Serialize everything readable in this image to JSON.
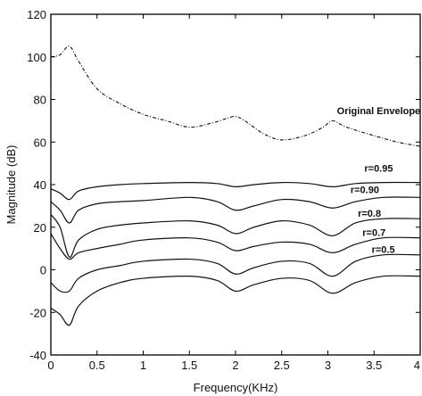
{
  "chart_data": {
    "type": "line",
    "title": "",
    "xlabel": "Frequency(KHz)",
    "ylabel": "Magnitude (dB)",
    "xlim": [
      0,
      4
    ],
    "ylim": [
      -40,
      120
    ],
    "xticks": [
      0,
      0.5,
      1,
      1.5,
      2,
      2.5,
      3,
      3.5,
      4
    ],
    "xtick_labels": [
      "0",
      "0.5",
      "1",
      "1.5",
      "2",
      "2.5",
      "3",
      "3.5",
      "4"
    ],
    "yticks": [
      -40,
      -20,
      0,
      20,
      40,
      60,
      80,
      100,
      120
    ],
    "ytick_labels": [
      "-40",
      "-20",
      "0",
      "20",
      "40",
      "60",
      "80",
      "100",
      "120"
    ],
    "grid": false,
    "legend": "none",
    "series": [
      {
        "name": "Original Envelope",
        "dashed": true,
        "x": [
          0,
          0.1,
          0.2,
          0.3,
          0.5,
          0.75,
          1.0,
          1.25,
          1.5,
          1.75,
          1.9,
          2.0,
          2.1,
          2.3,
          2.5,
          2.75,
          2.95,
          3.05,
          3.2,
          3.5,
          3.75,
          4.0
        ],
        "y": [
          100,
          101,
          105,
          98,
          85,
          78,
          73,
          70,
          67,
          69,
          71,
          72,
          70,
          64,
          61,
          63,
          67,
          70,
          67,
          63,
          60,
          58
        ]
      },
      {
        "name": "r=0.95",
        "x": [
          0,
          0.1,
          0.2,
          0.3,
          0.5,
          0.75,
          1.0,
          1.5,
          1.8,
          2.0,
          2.2,
          2.5,
          2.8,
          3.05,
          3.3,
          3.6,
          4.0
        ],
        "y": [
          38,
          36,
          33,
          37,
          39,
          40,
          40.5,
          41,
          40.5,
          39,
          40,
          41,
          40.5,
          39,
          40.5,
          41,
          41
        ]
      },
      {
        "name": "r=0.90",
        "x": [
          0,
          0.1,
          0.2,
          0.3,
          0.5,
          0.75,
          1.0,
          1.5,
          1.8,
          2.0,
          2.2,
          2.5,
          2.8,
          3.05,
          3.3,
          3.6,
          4.0
        ],
        "y": [
          32,
          28,
          22,
          28,
          31,
          32,
          32.5,
          34,
          32,
          28,
          30,
          33,
          32,
          29,
          32,
          34,
          34
        ]
      },
      {
        "name": "r=0.8",
        "x": [
          0,
          0.1,
          0.2,
          0.3,
          0.5,
          0.75,
          1.0,
          1.5,
          1.8,
          2.0,
          2.2,
          2.5,
          2.8,
          3.05,
          3.3,
          3.6,
          4.0
        ],
        "y": [
          26,
          20,
          6,
          14,
          19,
          21,
          22,
          23,
          21,
          17,
          20,
          23,
          21,
          16,
          22,
          24,
          24
        ]
      },
      {
        "name": "r=0.7",
        "x": [
          0,
          0.1,
          0.2,
          0.3,
          0.5,
          0.75,
          1.0,
          1.5,
          1.8,
          2.0,
          2.2,
          2.5,
          2.8,
          3.05,
          3.3,
          3.6,
          4.0
        ],
        "y": [
          17,
          10,
          5,
          8,
          10,
          12,
          14,
          15,
          13,
          9,
          11,
          13,
          12,
          8,
          12,
          15,
          15
        ]
      },
      {
        "name": "r=0.5",
        "x": [
          0,
          0.1,
          0.2,
          0.3,
          0.5,
          0.75,
          1.0,
          1.5,
          1.8,
          2.0,
          2.2,
          2.5,
          2.8,
          3.05,
          3.3,
          3.6,
          4.0
        ],
        "y": [
          -6,
          -10,
          -10,
          -4,
          0,
          2,
          4,
          5,
          3,
          -2,
          1,
          4,
          3,
          -3,
          4,
          7,
          7
        ]
      },
      {
        "name": "",
        "x": [
          0,
          0.1,
          0.2,
          0.3,
          0.5,
          0.75,
          1.0,
          1.5,
          1.8,
          2.0,
          2.2,
          2.5,
          2.8,
          3.05,
          3.3,
          3.6,
          4.0
        ],
        "y": [
          -18,
          -21,
          -26,
          -17,
          -10,
          -6,
          -4,
          -3,
          -5,
          -10,
          -7,
          -4,
          -5,
          -11,
          -6,
          -3,
          -3
        ]
      }
    ],
    "annotations": [
      {
        "text": "Original Envelope",
        "x": 3.55,
        "y": 73
      },
      {
        "text": "r=0.95",
        "x": 3.55,
        "y": 46
      },
      {
        "text": "r=0.90",
        "x": 3.4,
        "y": 36
      },
      {
        "text": "r=0.8",
        "x": 3.45,
        "y": 25
      },
      {
        "text": "r=0.7",
        "x": 3.5,
        "y": 16
      },
      {
        "text": "r=0.5",
        "x": 3.6,
        "y": 8
      }
    ]
  }
}
